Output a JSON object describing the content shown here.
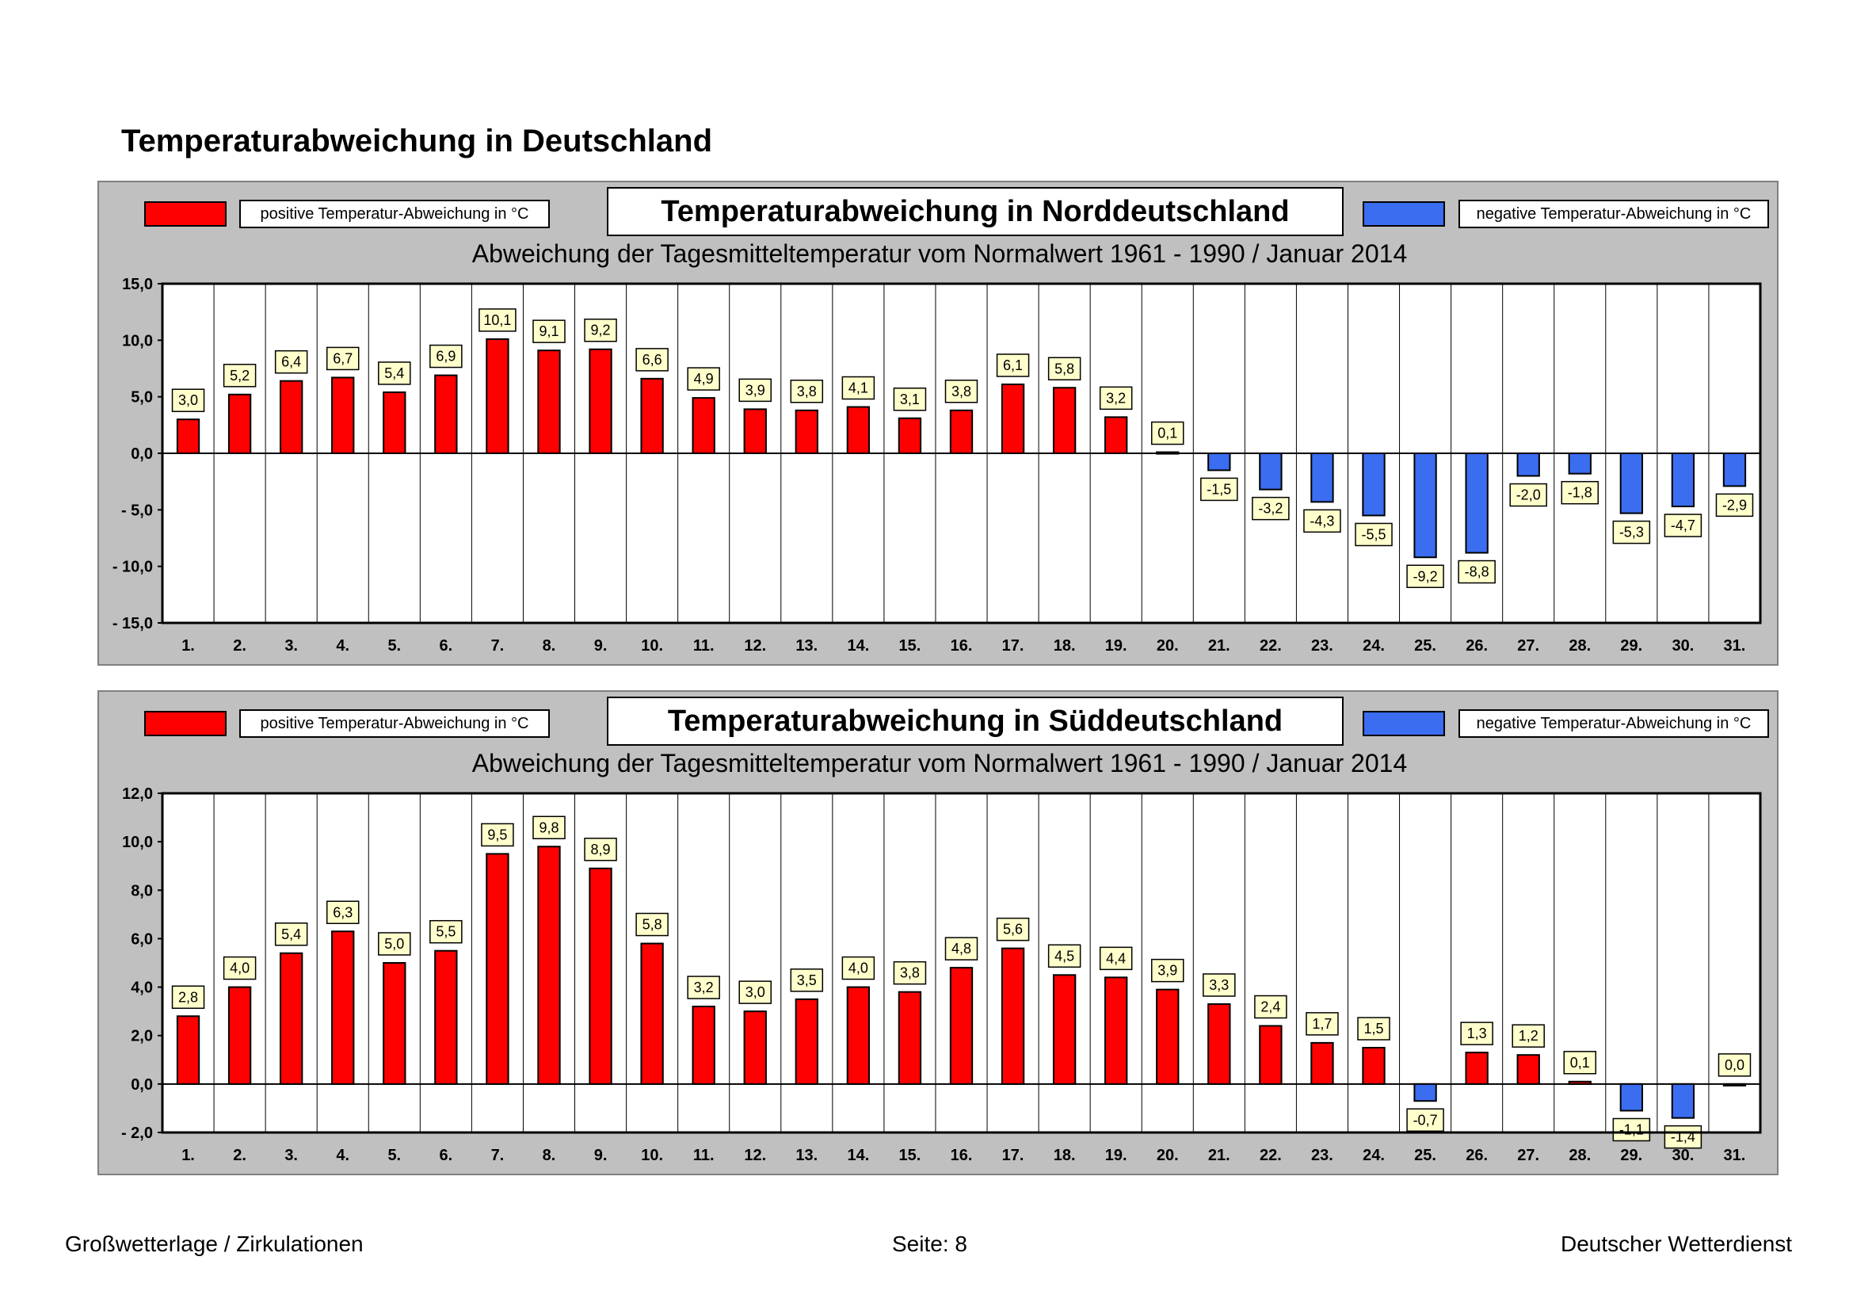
{
  "page_title": "Temperaturabweichung in Deutschland",
  "legend": {
    "positive_label": "positive Temperatur-Abweichung in °C",
    "negative_label": "negative Temperatur-Abweichung in °C",
    "positive_color": "#ff0000",
    "negative_color": "#3a6df0"
  },
  "footer": {
    "left": "Großwetterlage / Zirkulationen",
    "center": "Seite: 8",
    "right": "Deutscher Wetterdienst"
  },
  "chart_data": [
    {
      "type": "bar",
      "title": "Temperaturabweichung in Norddeutschland",
      "subtitle": "Abweichung der Tagesmitteltemperatur vom Normalwert 1961 - 1990  /  Januar 2014",
      "categories": [
        "1.",
        "2.",
        "3.",
        "4.",
        "5.",
        "6.",
        "7.",
        "8.",
        "9.",
        "10.",
        "11.",
        "12.",
        "13.",
        "14.",
        "15.",
        "16.",
        "17.",
        "18.",
        "19.",
        "20.",
        "21.",
        "22.",
        "23.",
        "24.",
        "25.",
        "26.",
        "27.",
        "28.",
        "29.",
        "30.",
        "31."
      ],
      "values": [
        3.0,
        5.2,
        6.4,
        6.7,
        5.4,
        6.9,
        10.1,
        9.1,
        9.2,
        6.6,
        4.9,
        3.9,
        3.8,
        4.1,
        3.1,
        3.8,
        6.1,
        5.8,
        3.2,
        0.1,
        -1.5,
        -3.2,
        -4.3,
        -5.5,
        -9.2,
        -8.8,
        -2.0,
        -1.8,
        -5.3,
        -4.7,
        -2.9
      ],
      "value_labels": [
        "3,0",
        "5,2",
        "6,4",
        "6,7",
        "5,4",
        "6,9",
        "10,1",
        "9,1",
        "9,2",
        "6,6",
        "4,9",
        "3,9",
        "3,8",
        "4,1",
        "3,1",
        "3,8",
        "6,1",
        "5,8",
        "3,2",
        "0,1",
        "-1,5",
        "-3,2",
        "-4,3",
        "-5,5",
        "-9,2",
        "-8,8",
        "-2,0",
        "-1,8",
        "-5,3",
        "-4,7",
        "-2,9"
      ],
      "ylim": [
        -15,
        15
      ],
      "yticks": [
        15,
        10,
        5,
        0,
        -5,
        -10,
        -15
      ],
      "ytick_labels": [
        "15,0",
        "10,0",
        "5,0",
        "0,0",
        "- 5,0",
        "- 10,0",
        "- 15,0"
      ],
      "xlabel": "",
      "ylabel": ""
    },
    {
      "type": "bar",
      "title": "Temperaturabweichung in Süddeutschland",
      "subtitle": "Abweichung der Tagesmitteltemperatur vom Normalwert 1961 - 1990  /  Januar 2014",
      "categories": [
        "1.",
        "2.",
        "3.",
        "4.",
        "5.",
        "6.",
        "7.",
        "8.",
        "9.",
        "10.",
        "11.",
        "12.",
        "13.",
        "14.",
        "15.",
        "16.",
        "17.",
        "18.",
        "19.",
        "20.",
        "21.",
        "22.",
        "23.",
        "24.",
        "25.",
        "26.",
        "27.",
        "28.",
        "29.",
        "30.",
        "31."
      ],
      "values": [
        2.8,
        4.0,
        5.4,
        6.3,
        5.0,
        5.5,
        9.5,
        9.8,
        8.9,
        5.8,
        3.2,
        3.0,
        3.5,
        4.0,
        3.8,
        4.8,
        5.6,
        4.5,
        4.4,
        3.9,
        3.3,
        2.4,
        1.7,
        1.5,
        -0.7,
        1.3,
        1.2,
        0.1,
        -1.1,
        -1.4,
        0.0
      ],
      "value_labels": [
        "2,8",
        "4,0",
        "5,4",
        "6,3",
        "5,0",
        "5,5",
        "9,5",
        "9,8",
        "8,9",
        "5,8",
        "3,2",
        "3,0",
        "3,5",
        "4,0",
        "3,8",
        "4,8",
        "5,6",
        "4,5",
        "4,4",
        "3,9",
        "3,3",
        "2,4",
        "1,7",
        "1,5",
        "-0,7",
        "1,3",
        "1,2",
        "0,1",
        "-1,1",
        "-1,4",
        "0,0"
      ],
      "ylim": [
        -2,
        12
      ],
      "yticks": [
        12,
        10,
        8,
        6,
        4,
        2,
        0,
        -2
      ],
      "ytick_labels": [
        "12,0",
        "10,0",
        "8,0",
        "6,0",
        "4,0",
        "2,0",
        "0,0",
        "- 2,0"
      ],
      "xlabel": "",
      "ylabel": ""
    }
  ]
}
